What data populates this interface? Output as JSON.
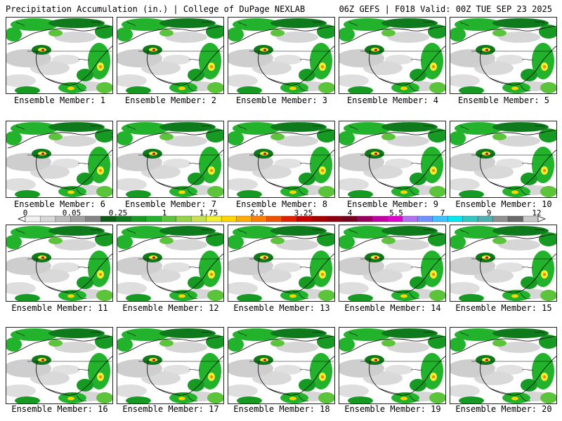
{
  "header": {
    "left": "Precipitation Accumulation (in.) | College of DuPage NEXLAB",
    "right": "06Z GEFS | F018 Valid: 00Z TUE SEP 23 2025"
  },
  "colorbar": {
    "tick_labels": [
      "0",
      "0.05",
      "0.25",
      "1",
      "1.75",
      "2.5",
      "3.25",
      "4",
      "5.5",
      "7",
      "9",
      "12"
    ],
    "colors": [
      "#f0f0f0",
      "#d8d8d8",
      "#bcbcbc",
      "#a0a0a0",
      "#848484",
      "#0a5c14",
      "#0f7a1c",
      "#179a24",
      "#22b22c",
      "#5cc43a",
      "#96d246",
      "#c6e050",
      "#f0f030",
      "#ffd400",
      "#ffaa00",
      "#ff7e00",
      "#f05000",
      "#e02000",
      "#c80000",
      "#a80000",
      "#8c0010",
      "#7a0020",
      "#9a0060",
      "#c000a0",
      "#e000d0",
      "#b070f0",
      "#7090ff",
      "#40c0ff",
      "#00e8f0",
      "#30c8c0",
      "#50b0b0",
      "#909090",
      "#6a6a6a",
      "#c8c8c8"
    ]
  },
  "members": [
    {
      "label": "Ensemble Member: 1"
    },
    {
      "label": "Ensemble Member: 2"
    },
    {
      "label": "Ensemble Member: 3"
    },
    {
      "label": "Ensemble Member: 4"
    },
    {
      "label": "Ensemble Member: 5"
    },
    {
      "label": "Ensemble Member: 6"
    },
    {
      "label": "Ensemble Member: 7"
    },
    {
      "label": "Ensemble Member: 8"
    },
    {
      "label": "Ensemble Member: 9"
    },
    {
      "label": "Ensemble Member: 10"
    },
    {
      "label": "Ensemble Member: 11"
    },
    {
      "label": "Ensemble Member: 12"
    },
    {
      "label": "Ensemble Member: 13"
    },
    {
      "label": "Ensemble Member: 14"
    },
    {
      "label": "Ensemble Member: 15"
    },
    {
      "label": "Ensemble Member: 16"
    },
    {
      "label": "Ensemble Member: 17"
    },
    {
      "label": "Ensemble Member: 18"
    },
    {
      "label": "Ensemble Member: 19"
    },
    {
      "label": "Ensemble Member: 20"
    }
  ]
}
